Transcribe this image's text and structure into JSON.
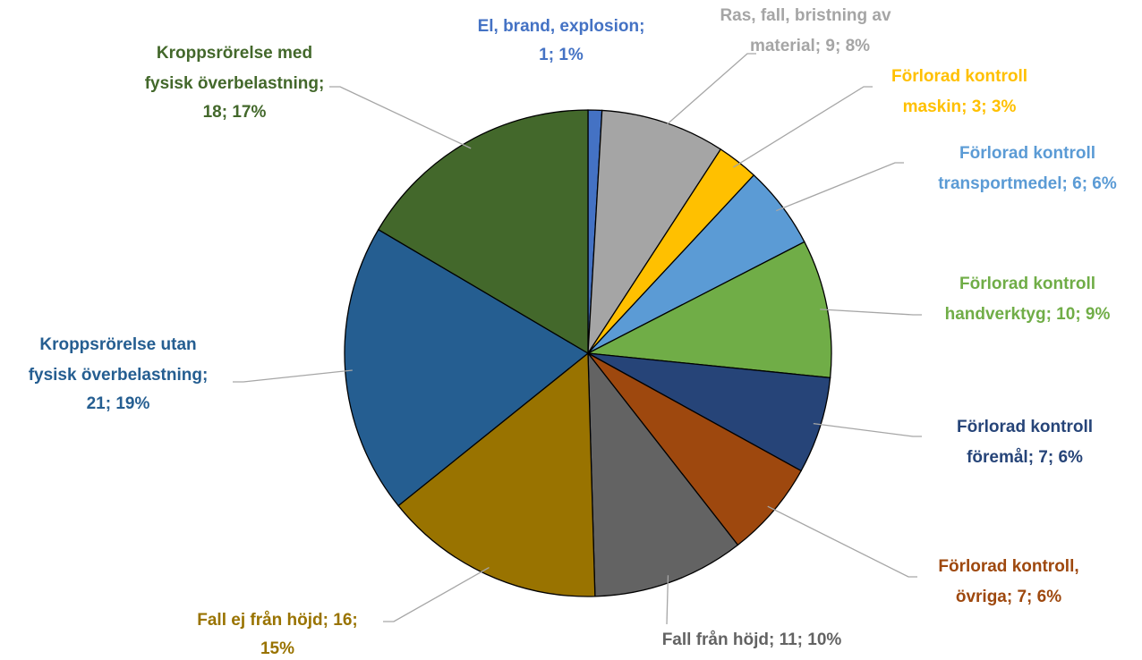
{
  "chart_data": {
    "type": "pie",
    "categories": [
      "El, brand, explosion",
      "Ras, fall, bristning av material",
      "Förlorad kontroll maskin",
      "Förlorad kontroll transportmedel",
      "Förlorad kontroll handverktyg",
      "Förlorad kontroll föremål",
      "Förlorad kontroll, övriga",
      "Fall från höjd",
      "Fall ej från höjd",
      "Kroppsrörelse utan fysisk överbelastning",
      "Kroppsrörelse med fysisk överbelastning"
    ],
    "values": [
      1,
      9,
      3,
      6,
      10,
      7,
      7,
      11,
      16,
      21,
      18
    ],
    "value_labels": [
      [
        "El, brand, explosion;",
        "1; 1%"
      ],
      [
        "Ras, fall, bristning av",
        "material; 9; 8%"
      ],
      [
        "Förlorad kontroll",
        "maskin; 3; 3%"
      ],
      [
        "Förlorad kontroll",
        "transportmedel; 6; 6%"
      ],
      [
        "Förlorad kontroll",
        "handverktyg; 10; 9%"
      ],
      [
        "Förlorad kontroll",
        "föremål; 7; 6%"
      ],
      [
        "Förlorad kontroll,",
        "övriga; 7; 6%"
      ],
      [
        "Fall från höjd; 11; 10%"
      ],
      [
        "Fall ej från höjd; 16;",
        "15%"
      ],
      [
        "Kroppsrörelse utan",
        "fysisk överbelastning;",
        "21; 19%"
      ],
      [
        "Kroppsrörelse med",
        "fysisk överbelastning;",
        "18; 17%"
      ]
    ],
    "colors": [
      "#4472c4",
      "#a5a5a5",
      "#ffc000",
      "#5b9bd5",
      "#70ad47",
      "#264478",
      "#9e480e",
      "#636363",
      "#997300",
      "#255e91",
      "#43682b"
    ]
  }
}
